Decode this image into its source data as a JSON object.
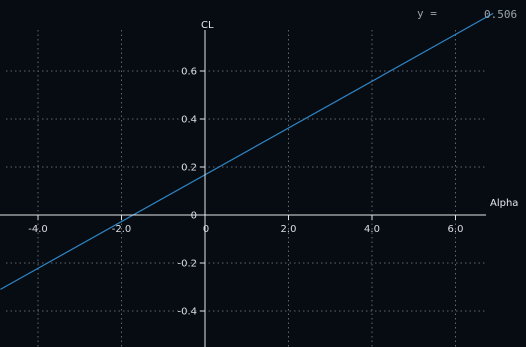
{
  "chart_data": {
    "type": "line",
    "xlabel": "Alpha",
    "ylabel": "CL",
    "xlim": [
      -4.9,
      6.9
    ],
    "ylim": [
      -0.54,
      0.78
    ],
    "x_ticks": [
      -4.0,
      -2.0,
      0,
      2.0,
      4.0,
      6.0
    ],
    "x_tick_labels": [
      "-4.0",
      "-2.0",
      "0",
      "2.0",
      "4.0",
      "6.0"
    ],
    "y_ticks": [
      -0.4,
      -0.2,
      0,
      0.2,
      0.4,
      0.6
    ],
    "y_tick_labels": [
      "-0.4",
      "-0.2",
      "0",
      "0.2",
      "0.4",
      "0.6"
    ],
    "grid": true,
    "series": [
      {
        "x": [
          -4.9,
          6.9
        ],
        "y": [
          -0.31,
          0.84
        ]
      }
    ],
    "readout": {
      "label": "y =",
      "value": "0.506"
    }
  },
  "colors": {
    "background": "#070c12",
    "axis": "#e2e6ea",
    "grid": "#5f6670",
    "line": "#2f86c7"
  }
}
